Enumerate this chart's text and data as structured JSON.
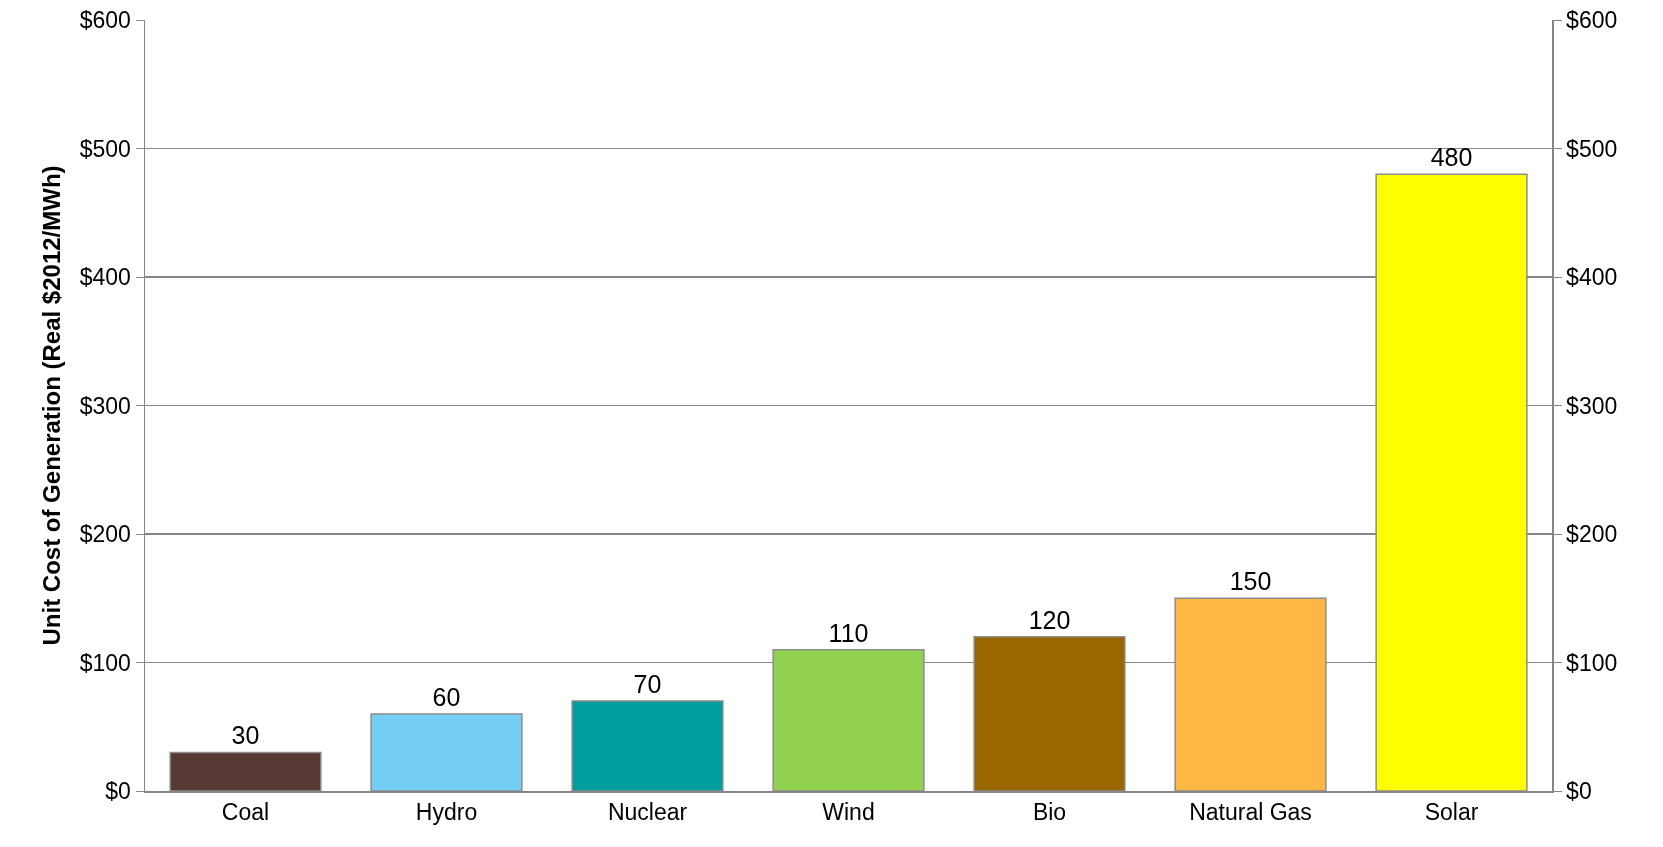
{
  "chart_data": {
    "type": "bar",
    "ylabel": "Unit Cost of Generation (Real $2012/MWh)",
    "categories": [
      "Coal",
      "Hydro",
      "Nuclear",
      "Wind",
      "Bio",
      "Natural Gas",
      "Solar"
    ],
    "values": [
      30,
      60,
      70,
      110,
      120,
      150,
      480
    ],
    "colors": [
      "#573a35",
      "#75cff4",
      "#009d9f",
      "#92d050",
      "#996600",
      "#ffb643",
      "#ffff00"
    ],
    "data_labels": true,
    "ylim": [
      0,
      600
    ],
    "yticks": [
      {
        "value": 0,
        "label": "$0"
      },
      {
        "value": 100,
        "label": "$100"
      },
      {
        "value": 200,
        "label": "$200"
      },
      {
        "value": 300,
        "label": "$300"
      },
      {
        "value": 400,
        "label": "$400"
      },
      {
        "value": 500,
        "label": "$500"
      },
      {
        "value": 600,
        "label": "$600"
      }
    ],
    "y2lim": [
      0,
      600
    ],
    "y2ticks": [
      {
        "value": 0,
        "label": "$0"
      },
      {
        "value": 100,
        "label": "$100"
      },
      {
        "value": 200,
        "label": "$200"
      },
      {
        "value": 300,
        "label": "$300"
      },
      {
        "value": 400,
        "label": "$400"
      },
      {
        "value": 500,
        "label": "$500"
      },
      {
        "value": 600,
        "label": "$600"
      }
    ],
    "grid": "y"
  }
}
